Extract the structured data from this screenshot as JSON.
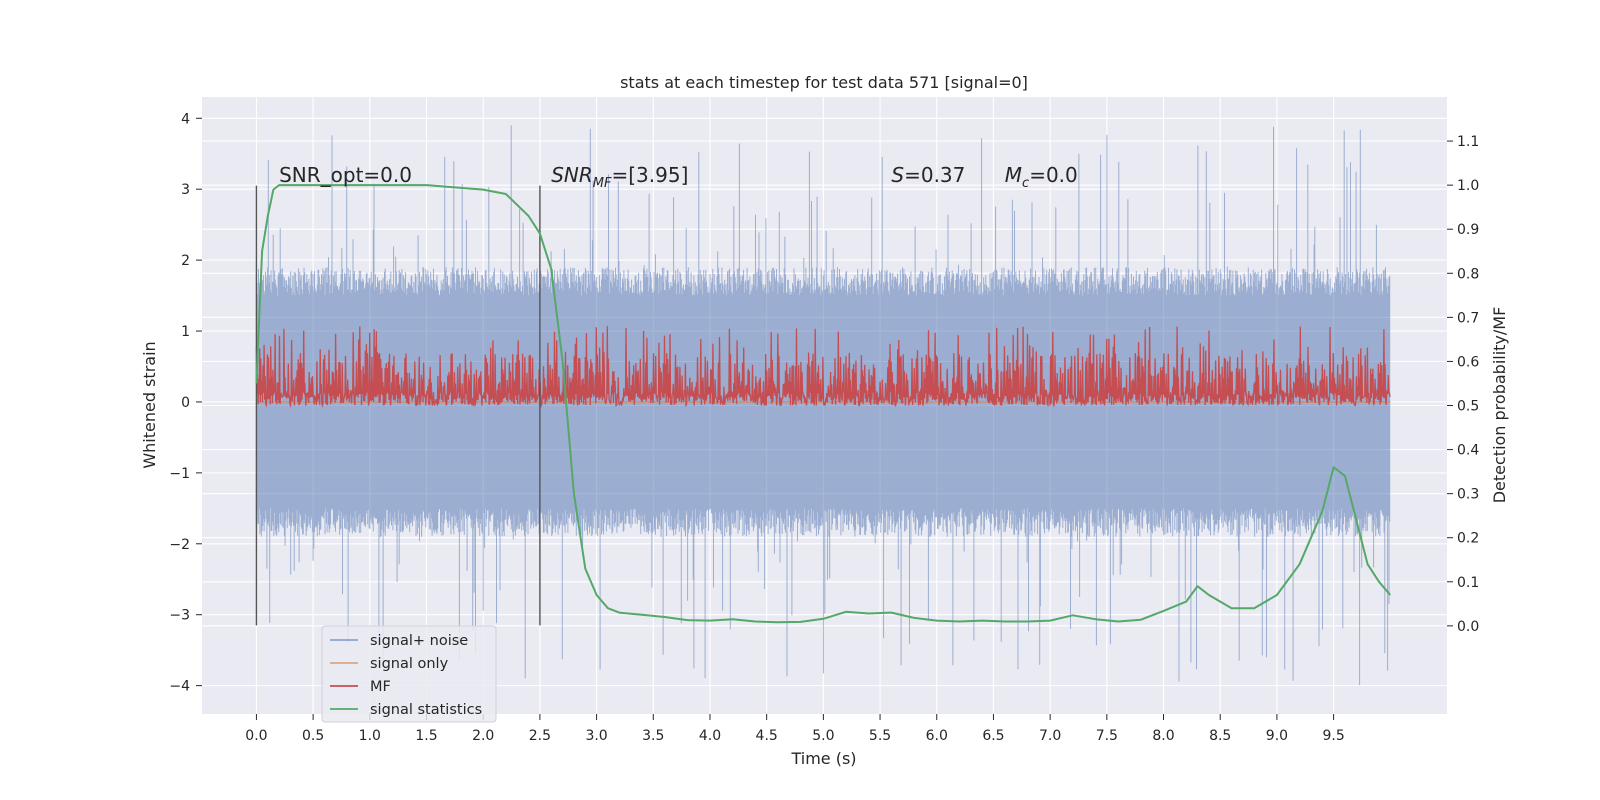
{
  "chart_data": {
    "type": "line",
    "title": "stats at each timestep for test data 571 [signal=0]",
    "xlabel": "Time (s)",
    "ylabel": "Whitened strain",
    "ylabel_right": "Detection probability/MF",
    "xlim": [
      -0.48,
      10.5
    ],
    "ylim": [
      -4.4,
      4.3
    ],
    "ylim_right": [
      -0.2,
      1.2
    ],
    "xticks": [
      0.0,
      0.5,
      1.0,
      1.5,
      2.0,
      2.5,
      3.0,
      3.5,
      4.0,
      4.5,
      5.0,
      5.5,
      6.0,
      6.5,
      7.0,
      7.5,
      8.0,
      8.5,
      9.0,
      9.5
    ],
    "xtick_labels": [
      "0.0",
      "0.5",
      "1.0",
      "1.5",
      "2.0",
      "2.5",
      "3.0",
      "3.5",
      "4.0",
      "4.5",
      "5.0",
      "5.5",
      "6.0",
      "6.5",
      "7.0",
      "7.5",
      "8.0",
      "8.5",
      "9.0",
      "9.5"
    ],
    "yticks": [
      -4,
      -3,
      -2,
      -1,
      0,
      1,
      2,
      3,
      4
    ],
    "ytick_labels": [
      "−4",
      "−3",
      "−2",
      "−1",
      "0",
      "1",
      "2",
      "3",
      "4"
    ],
    "yticks_right": [
      0.0,
      0.1,
      0.2,
      0.3,
      0.4,
      0.5,
      0.6,
      0.7,
      0.8,
      0.9,
      1.0,
      1.1
    ],
    "ytick_labels_right": [
      "0.0",
      "0.1",
      "0.2",
      "0.3",
      "0.4",
      "0.5",
      "0.6",
      "0.7",
      "0.8",
      "0.9",
      "1.0",
      "1.1"
    ],
    "grid": true,
    "legend_position": "lower-left",
    "annotations": [
      {
        "label": "SNR_opt=0.0",
        "x": 0.2,
        "y": 3.1
      },
      {
        "label": "SNR_MF=[3.95]",
        "x": 2.6,
        "y": 3.1
      },
      {
        "label": "S=0.37",
        "x": 5.6,
        "y": 3.1
      },
      {
        "label": "M_c=0.0",
        "x": 6.6,
        "y": 3.1
      }
    ],
    "vlines": [
      {
        "x": 0.0,
        "ymin": -3.15,
        "ymax": 3.05
      },
      {
        "x": 2.5,
        "ymin": -3.15,
        "ymax": 3.05
      }
    ],
    "series": [
      {
        "name": "signal+ noise",
        "color": "#4c72b0",
        "kind": "noise",
        "x_range": [
          0.0,
          10.0
        ],
        "envelope_typical": [
          -1.7,
          1.7
        ],
        "extreme_range": [
          -4.0,
          3.9
        ]
      },
      {
        "name": "signal only",
        "color": "#dd8452",
        "kind": "flat",
        "x_range": [
          0.0,
          10.0
        ],
        "y": 0.0
      },
      {
        "name": "MF",
        "color": "#c44e52",
        "kind": "band",
        "axis": "right",
        "x_range": [
          0.0,
          10.0
        ],
        "band": [
          0.5,
          0.62
        ],
        "peak_max": 0.68
      },
      {
        "name": "signal statistics",
        "color": "#55a868",
        "axis": "right",
        "x": [
          0.0,
          0.05,
          0.1,
          0.15,
          0.2,
          0.3,
          0.5,
          1.0,
          1.5,
          2.0,
          2.2,
          2.4,
          2.5,
          2.6,
          2.7,
          2.8,
          2.9,
          3.0,
          3.1,
          3.2,
          3.4,
          3.6,
          3.8,
          4.0,
          4.2,
          4.4,
          4.6,
          4.8,
          5.0,
          5.2,
          5.4,
          5.6,
          5.8,
          6.0,
          6.2,
          6.4,
          6.6,
          6.8,
          7.0,
          7.2,
          7.4,
          7.6,
          7.8,
          8.0,
          8.2,
          8.3,
          8.4,
          8.6,
          8.8,
          9.0,
          9.2,
          9.4,
          9.5,
          9.6,
          9.7,
          9.8,
          9.9,
          10.0
        ],
        "y": [
          0.55,
          0.85,
          0.93,
          0.99,
          1.0,
          1.0,
          1.0,
          1.0,
          1.0,
          0.99,
          0.98,
          0.93,
          0.89,
          0.81,
          0.6,
          0.3,
          0.13,
          0.07,
          0.04,
          0.03,
          0.025,
          0.02,
          0.013,
          0.012,
          0.015,
          0.01,
          0.008,
          0.009,
          0.016,
          0.032,
          0.028,
          0.03,
          0.018,
          0.012,
          0.01,
          0.012,
          0.01,
          0.01,
          0.012,
          0.024,
          0.015,
          0.01,
          0.014,
          0.034,
          0.055,
          0.09,
          0.07,
          0.04,
          0.04,
          0.07,
          0.14,
          0.26,
          0.36,
          0.34,
          0.24,
          0.14,
          0.1,
          0.07
        ]
      }
    ]
  }
}
